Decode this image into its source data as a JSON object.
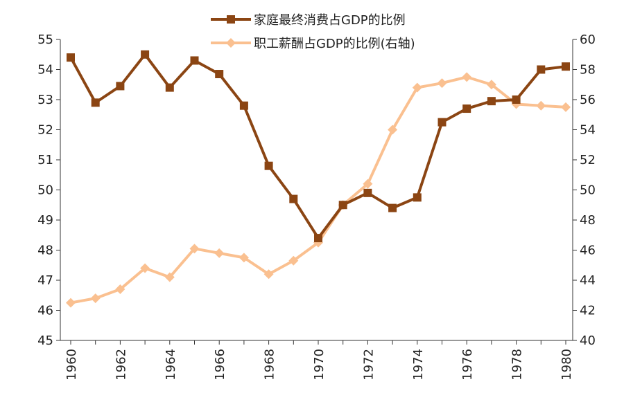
{
  "chart_data": {
    "type": "line",
    "title": "",
    "x": [
      1960,
      1961,
      1962,
      1963,
      1964,
      1965,
      1966,
      1967,
      1968,
      1969,
      1970,
      1971,
      1972,
      1973,
      1974,
      1975,
      1976,
      1977,
      1978,
      1979,
      1980
    ],
    "x_tick_labels": [
      "1960",
      "1962",
      "1964",
      "1966",
      "1968",
      "1970",
      "1972",
      "1974",
      "1976",
      "1978",
      "1980"
    ],
    "xlim": [
      1960,
      1980
    ],
    "left_axis": {
      "ylim": [
        45,
        55
      ],
      "ticks": [
        "45",
        "46",
        "47",
        "48",
        "49",
        "50",
        "51",
        "52",
        "53",
        "54",
        "55"
      ]
    },
    "right_axis": {
      "ylim": [
        40,
        60
      ],
      "ticks": [
        "40",
        "42",
        "44",
        "46",
        "48",
        "50",
        "52",
        "54",
        "56",
        "58",
        "60"
      ]
    },
    "series": [
      {
        "name": "家庭最终消费占GDP的比例",
        "axis": "left",
        "color": "#8B4513",
        "marker": "square",
        "values": [
          54.4,
          52.9,
          53.45,
          54.5,
          53.4,
          54.3,
          53.85,
          52.8,
          50.8,
          49.7,
          48.4,
          49.5,
          49.9,
          49.4,
          49.75,
          52.25,
          52.7,
          52.95,
          53.0,
          54.0,
          54.1
        ]
      },
      {
        "name": "职工薪酬占GDP的比例(右轴)",
        "axis": "right",
        "color": "#FAC090",
        "marker": "diamond",
        "values": [
          42.5,
          42.8,
          43.4,
          44.8,
          44.2,
          46.1,
          45.8,
          45.5,
          44.4,
          45.3,
          46.5,
          49.0,
          50.4,
          54.0,
          56.8,
          57.1,
          57.5,
          57.0,
          55.7,
          55.6,
          55.5
        ]
      }
    ],
    "legend_position": "top"
  }
}
